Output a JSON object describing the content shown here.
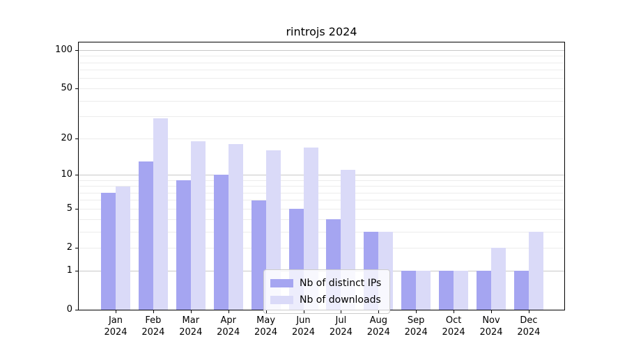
{
  "chart_data": {
    "type": "bar",
    "title": "rintrojs 2024",
    "categories": [
      "Jan 2024",
      "Feb 2024",
      "Mar 2024",
      "Apr 2024",
      "May 2024",
      "Jun 2024",
      "Jul 2024",
      "Aug 2024",
      "Sep 2024",
      "Oct 2024",
      "Nov 2024",
      "Dec 2024"
    ],
    "series": [
      {
        "name": "Nb of distinct IPs",
        "color": "#a5a5f1",
        "values": [
          7,
          13,
          9,
          10,
          6,
          5,
          4,
          3,
          1,
          1,
          1,
          1
        ]
      },
      {
        "name": "Nb of downloads",
        "color": "#dadaf8",
        "values": [
          8,
          29,
          19,
          18,
          16,
          17,
          11,
          3,
          1,
          1,
          2,
          3
        ]
      }
    ],
    "xlabel": "",
    "ylabel": "",
    "y_scale": "log1p",
    "ylim": [
      0,
      115
    ],
    "y_tick_labels": [
      0,
      1,
      2,
      5,
      10,
      20,
      50,
      100
    ],
    "y_major_gridlines": [
      1,
      10,
      100
    ],
    "y_minor_gridlines": [
      2,
      3,
      4,
      5,
      6,
      7,
      8,
      9,
      20,
      30,
      40,
      50,
      60,
      70,
      80,
      90
    ],
    "grid": true,
    "legend_position": "inside-bottom-center",
    "colors": {
      "axis": "#000000",
      "text": "#000000",
      "major_grid": "#c8c8c8",
      "minor_grid": "#ececec",
      "background": "#ffffff"
    }
  }
}
